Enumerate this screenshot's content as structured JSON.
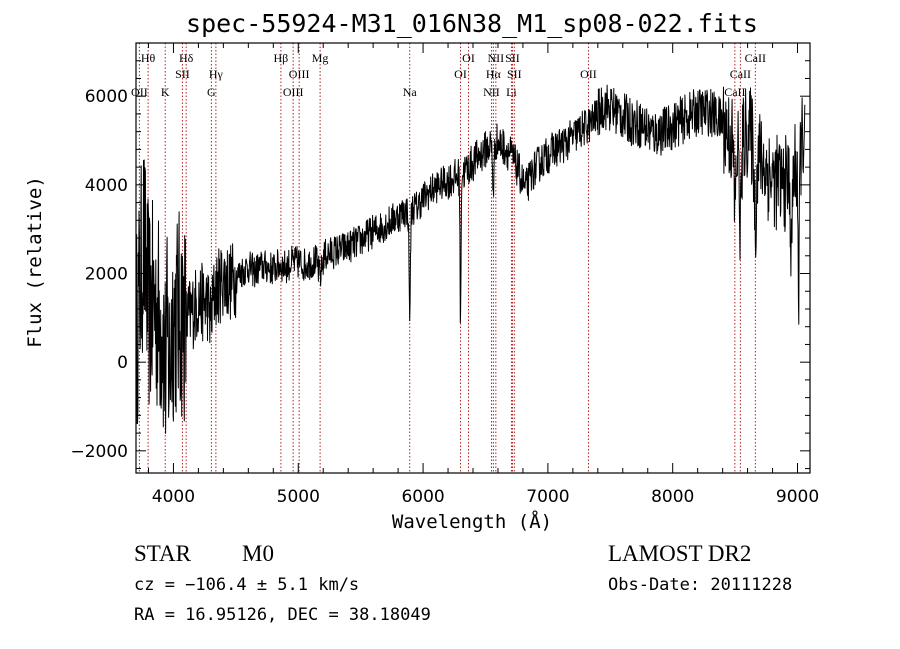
{
  "chart_data": {
    "type": "line",
    "title": "spec-55924-M31_016N38_M1_sp08-022.fits",
    "xlabel": "Wavelength (Å)",
    "ylabel": "Flux (relative)",
    "xlim": [
      3700,
      9100
    ],
    "ylim": [
      -2500,
      7200
    ],
    "xticks": [
      4000,
      5000,
      6000,
      7000,
      8000,
      9000
    ],
    "yticks": [
      -2000,
      0,
      2000,
      4000,
      6000
    ],
    "xtick_labels": [
      "4000",
      "5000",
      "6000",
      "7000",
      "8000",
      "9000"
    ],
    "ytick_labels": [
      "−2000",
      "0",
      "2000",
      "4000",
      "6000"
    ],
    "grid": false,
    "line_color": "#000000",
    "marker_color": "#b22222",
    "spectrum_anchors": [
      [
        3700,
        500
      ],
      [
        3760,
        2800
      ],
      [
        3800,
        1200
      ],
      [
        3850,
        1300
      ],
      [
        3900,
        900
      ],
      [
        3950,
        1200
      ],
      [
        4000,
        1000
      ],
      [
        4050,
        1100
      ],
      [
        4100,
        900
      ],
      [
        4150,
        1150
      ],
      [
        4200,
        1400
      ],
      [
        4250,
        1300
      ],
      [
        4300,
        1600
      ],
      [
        4350,
        1650
      ],
      [
        4400,
        1900
      ],
      [
        4450,
        1800
      ],
      [
        4500,
        1900
      ],
      [
        4550,
        2050
      ],
      [
        4600,
        2150
      ],
      [
        4650,
        2050
      ],
      [
        4700,
        2150
      ],
      [
        4750,
        2150
      ],
      [
        4800,
        2100
      ],
      [
        4850,
        2200
      ],
      [
        4900,
        2150
      ],
      [
        4950,
        2250
      ],
      [
        5000,
        2250
      ],
      [
        5050,
        2200
      ],
      [
        5100,
        2250
      ],
      [
        5150,
        2300
      ],
      [
        5200,
        2400
      ],
      [
        5300,
        2500
      ],
      [
        5400,
        2600
      ],
      [
        5500,
        2750
      ],
      [
        5600,
        2950
      ],
      [
        5700,
        3100
      ],
      [
        5800,
        3300
      ],
      [
        5880,
        3450
      ],
      [
        5950,
        3500
      ],
      [
        6000,
        3700
      ],
      [
        6100,
        3950
      ],
      [
        6200,
        4100
      ],
      [
        6300,
        4200
      ],
      [
        6400,
        4500
      ],
      [
        6500,
        4800
      ],
      [
        6580,
        5000
      ],
      [
        6650,
        4850
      ],
      [
        6700,
        4700
      ],
      [
        6760,
        4350
      ],
      [
        6820,
        3900
      ],
      [
        6880,
        4300
      ],
      [
        6950,
        4550
      ],
      [
        7050,
        4800
      ],
      [
        7150,
        4950
      ],
      [
        7250,
        5200
      ],
      [
        7350,
        5400
      ],
      [
        7450,
        5800
      ],
      [
        7550,
        5650
      ],
      [
        7650,
        5450
      ],
      [
        7750,
        5350
      ],
      [
        7850,
        5150
      ],
      [
        7950,
        5250
      ],
      [
        8100,
        5500
      ],
      [
        8200,
        5650
      ],
      [
        8300,
        5650
      ],
      [
        8400,
        5400
      ],
      [
        8500,
        4900
      ],
      [
        8550,
        4900
      ],
      [
        8600,
        5250
      ],
      [
        8700,
        4600
      ],
      [
        8800,
        4100
      ],
      [
        8900,
        4000
      ],
      [
        9000,
        4400
      ],
      [
        9060,
        5400
      ]
    ],
    "absorption_features": [
      [
        3934,
        -1200,
        15
      ],
      [
        3968,
        -1200,
        15
      ],
      [
        4300,
        -600,
        20
      ],
      [
        5175,
        -400,
        20
      ],
      [
        5893,
        -2300,
        8
      ],
      [
        6300,
        -3600,
        5
      ],
      [
        6563,
        -1000,
        10
      ],
      [
        8498,
        -1400,
        12
      ],
      [
        8542,
        -1700,
        12
      ],
      [
        8662,
        -1600,
        12
      ],
      [
        8950,
        -2000,
        8
      ],
      [
        9010,
        -3800,
        6
      ]
    ],
    "line_markers": [
      {
        "label": "Hθ",
        "wavelength": 3797,
        "row": 0
      },
      {
        "label": "OII",
        "wavelength": 3727,
        "row": 2
      },
      {
        "label": "K",
        "wavelength": 3934,
        "row": 2
      },
      {
        "label": "Hδ",
        "wavelength": 4102,
        "row": 0
      },
      {
        "label": "SII",
        "wavelength": 4072,
        "row": 1
      },
      {
        "label": "Hγ",
        "wavelength": 4340,
        "row": 1
      },
      {
        "label": "G",
        "wavelength": 4304,
        "row": 2
      },
      {
        "label": "Hβ",
        "wavelength": 4861,
        "row": 0
      },
      {
        "label": "Mg",
        "wavelength": 5175,
        "row": 0
      },
      {
        "label": "OIII",
        "wavelength": 5007,
        "row": 1
      },
      {
        "label": "OIII",
        "wavelength": 4959,
        "row": 2
      },
      {
        "label": "Na",
        "wavelength": 5893,
        "row": 2
      },
      {
        "label": "OI",
        "wavelength": 6364,
        "row": 0
      },
      {
        "label": "OI",
        "wavelength": 6300,
        "row": 1
      },
      {
        "label": "NII",
        "wavelength": 6583,
        "row": 0
      },
      {
        "label": "SII",
        "wavelength": 6716,
        "row": 0
      },
      {
        "label": "Hα",
        "wavelength": 6563,
        "row": 1
      },
      {
        "label": "SII",
        "wavelength": 6731,
        "row": 1
      },
      {
        "label": "NII",
        "wavelength": 6548,
        "row": 2
      },
      {
        "label": "Li",
        "wavelength": 6708,
        "row": 2
      },
      {
        "label": "OII",
        "wavelength": 7325,
        "row": 1
      },
      {
        "label": "CaII",
        "wavelength": 8662,
        "row": 0
      },
      {
        "label": "CaII",
        "wavelength": 8542,
        "row": 1
      },
      {
        "label": "CaII",
        "wavelength": 8498,
        "row": 2
      }
    ]
  },
  "info": {
    "object_class": "STAR",
    "subclass": "M0",
    "survey": "LAMOST DR2",
    "redshift_line": "cz = −106.4 ± 5.1 km/s",
    "obs_date_line": "Obs-Date: 20111228",
    "coords_line": "RA =  16.95126, DEC =  38.18049"
  }
}
